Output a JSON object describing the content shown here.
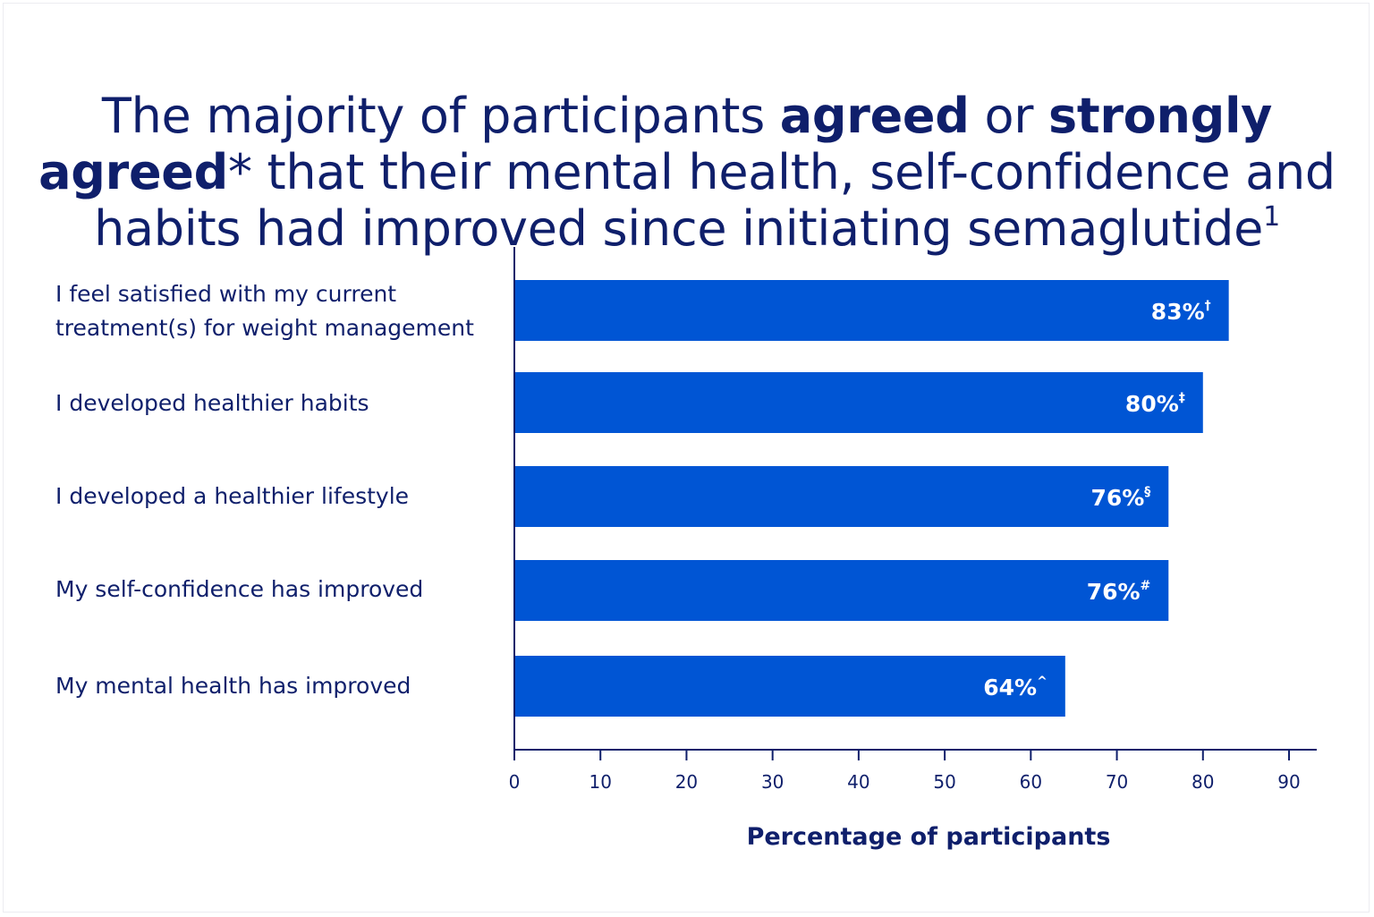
{
  "chart_data": {
    "type": "bar",
    "orientation": "horizontal",
    "title_parts": [
      {
        "text": "The majority of participants ",
        "bold": false
      },
      {
        "text": "agreed",
        "bold": true
      },
      {
        "text": " or ",
        "bold": false
      },
      {
        "text": "strongly agreed",
        "bold": true
      },
      {
        "text": "*",
        "bold": false
      },
      {
        "text": " that their mental health, self-confidence and habits had improved since initiating semaglutide",
        "bold": false
      },
      {
        "text": "1",
        "bold": false,
        "sup": true
      }
    ],
    "categories": [
      "I feel satisfied with my current treatment(s) for weight management",
      "I developed healthier habits",
      "I developed a healthier lifestyle",
      "My self-confidence has improved",
      "My mental health has improved"
    ],
    "values": [
      83,
      80,
      76,
      76,
      64
    ],
    "data_labels": [
      "83%",
      "80%",
      "76%",
      "76%",
      "64%"
    ],
    "data_label_marks": [
      "†",
      "‡",
      "§",
      "#",
      "^"
    ],
    "xlabel": "Percentage of participants",
    "ylabel": "",
    "xlim": [
      0,
      90
    ],
    "xticks": [
      0,
      10,
      20,
      30,
      40,
      50,
      60,
      70,
      80,
      90
    ],
    "grid": false,
    "legend": "none",
    "bar_color": "#0055d4",
    "text_color": "#0f1f6b"
  }
}
